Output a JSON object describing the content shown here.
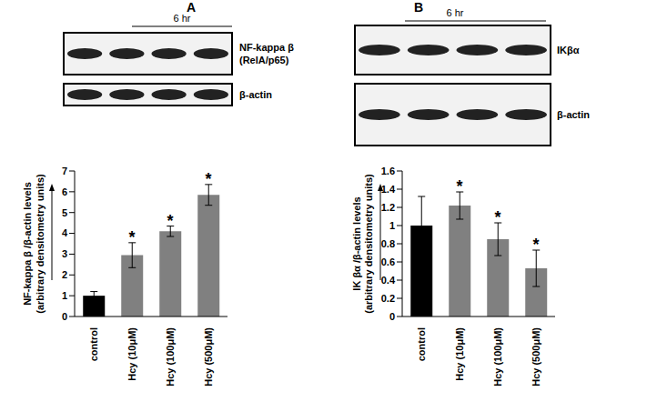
{
  "chart_data": [
    {
      "type": "bar",
      "panel": "A",
      "time_label": "6 hr",
      "blot_labels": [
        [
          "NF-kappa β",
          "(RelA/p65)"
        ],
        [
          "β-actin"
        ]
      ],
      "ylabel": [
        "NF-kappa β /β-actin levels",
        "(arbitrary densitometry units)"
      ],
      "categories": [
        "control",
        "Hcy (10μM)",
        "Hcy (100μM)",
        "Hcy (500μM)"
      ],
      "values": [
        1,
        2.95,
        4.1,
        5.85
      ],
      "errors": [
        0.2,
        0.6,
        0.25,
        0.5
      ],
      "annotations": [
        null,
        "*",
        "*",
        "*"
      ],
      "colors": [
        "#000000",
        "#808080",
        "#808080",
        "#808080"
      ],
      "ylim": [
        0,
        7
      ],
      "yticks": [
        0,
        1,
        2,
        3,
        4,
        5,
        6,
        7
      ]
    },
    {
      "type": "bar",
      "panel": "B",
      "time_label": "6 hr",
      "blot_labels": [
        [
          "IKβα"
        ],
        [
          "β-actin"
        ]
      ],
      "ylabel": [
        "IK βα /β-actin levels",
        "(arbitrary densitometry units)"
      ],
      "categories": [
        "control",
        "Hcy (10μM)",
        "Hcy (100μM)",
        "Hcy (500μM)"
      ],
      "values": [
        1,
        1.22,
        0.85,
        0.53
      ],
      "errors": [
        0.32,
        0.15,
        0.18,
        0.2
      ],
      "annotations": [
        null,
        "*",
        "*",
        "*"
      ],
      "colors": [
        "#000000",
        "#808080",
        "#808080",
        "#808080"
      ],
      "ylim": [
        0,
        1.6
      ],
      "yticks": [
        0,
        0.2,
        0.4,
        0.6,
        0.8,
        1,
        1.2,
        1.4,
        1.6
      ]
    }
  ]
}
